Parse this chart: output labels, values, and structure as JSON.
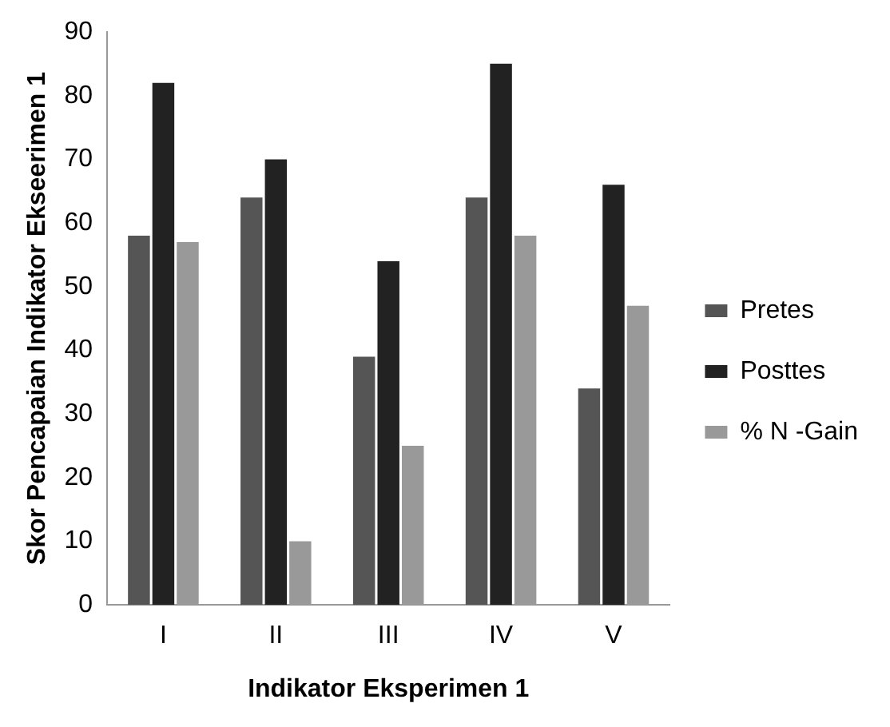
{
  "chart_data": {
    "type": "bar",
    "xlabel": "Indikator Eksperimen 1",
    "ylabel": "Skor Pencapaian Indikator Ekseerimen 1",
    "categories": [
      "I",
      "II",
      "III",
      "IV",
      "V"
    ],
    "series": [
      {
        "name": "Pretes",
        "color": "#555555",
        "values": [
          58,
          64,
          39,
          64,
          34
        ]
      },
      {
        "name": "Posttes",
        "color": "#222222",
        "values": [
          82,
          70,
          54,
          85,
          66
        ]
      },
      {
        "name": "% N -Gain",
        "color": "#999999",
        "values": [
          57,
          10,
          25,
          58,
          47
        ]
      }
    ],
    "ylim": [
      0,
      90
    ],
    "yticks": [
      0,
      10,
      20,
      30,
      40,
      50,
      60,
      70,
      80,
      90
    ],
    "grid": false,
    "legend": "right"
  }
}
